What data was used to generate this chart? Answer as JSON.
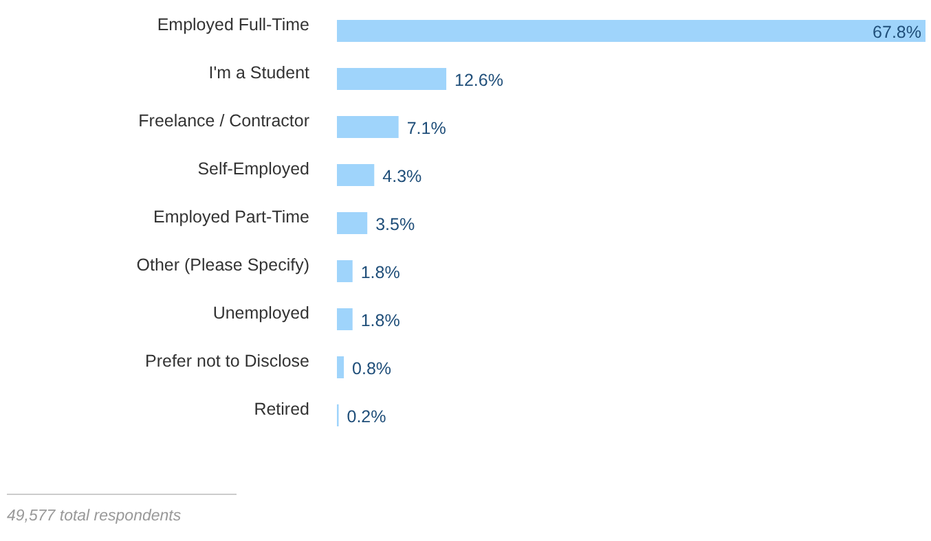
{
  "chart_data": {
    "type": "bar",
    "orientation": "horizontal",
    "categories": [
      "Employed Full-Time",
      "I'm a Student",
      "Freelance / Contractor",
      "Self-Employed",
      "Employed Part-Time",
      "Other (Please Specify)",
      "Unemployed",
      "Prefer not to Disclose",
      "Retired"
    ],
    "values": [
      67.8,
      12.6,
      7.1,
      4.3,
      3.5,
      1.8,
      1.8,
      0.8,
      0.2
    ],
    "value_labels": [
      "67.8%",
      "12.6%",
      "7.1%",
      "4.3%",
      "3.5%",
      "1.8%",
      "1.8%",
      "0.8%",
      "0.2%"
    ],
    "color": "#9fd4fb",
    "annotations": [
      "49,577 total respondents"
    ]
  }
}
